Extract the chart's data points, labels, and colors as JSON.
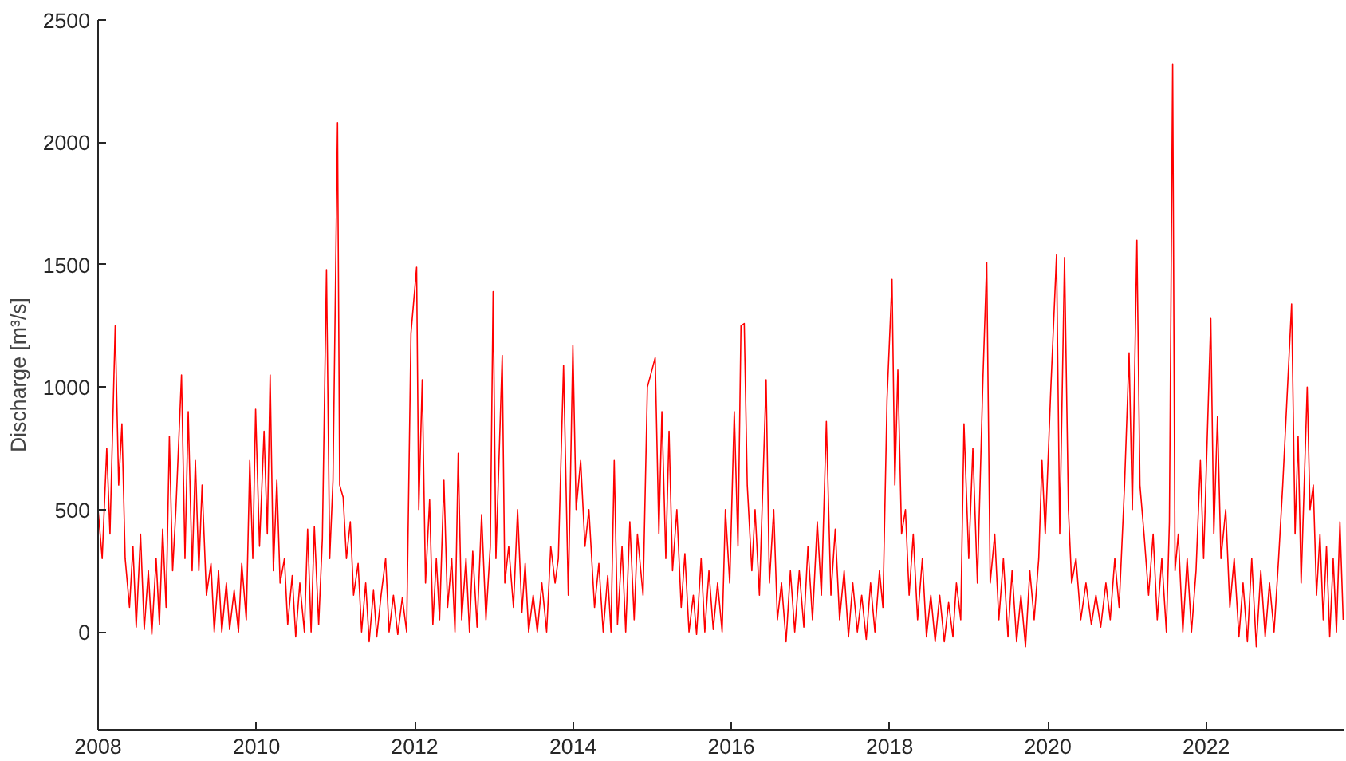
{
  "chart_data": {
    "type": "line",
    "ylabel": "Discharge [m³/s]",
    "xlim": [
      "2008-01-01",
      "2023-09-27"
    ],
    "ylim": [
      -400,
      2500
    ],
    "xticks": [
      "2008",
      "2010",
      "2012",
      "2014",
      "2016",
      "2018",
      "2020",
      "2022"
    ],
    "yticks": [
      0,
      500,
      1000,
      1500,
      2000,
      2500
    ],
    "grid": false,
    "marker": "none",
    "line_style": "solid",
    "series": [
      {
        "color": "#ff0000",
        "x": [
          "2008-01-01",
          "2008-01-20",
          "2008-02-10",
          "2008-02-25",
          "2008-03-20",
          "2008-04-05",
          "2008-04-20",
          "2008-05-05",
          "2008-05-25",
          "2008-06-10",
          "2008-06-25",
          "2008-07-15",
          "2008-08-01",
          "2008-08-20",
          "2008-09-05",
          "2008-09-25",
          "2008-10-10",
          "2008-10-25",
          "2008-11-10",
          "2008-11-25",
          "2008-12-10",
          "2008-12-25",
          "2009-01-20",
          "2009-02-05",
          "2009-02-20",
          "2009-03-10",
          "2009-03-25",
          "2009-04-10",
          "2009-04-25",
          "2009-05-15",
          "2009-06-05",
          "2009-06-20",
          "2009-07-10",
          "2009-07-25",
          "2009-08-15",
          "2009-08-30",
          "2009-09-20",
          "2009-10-10",
          "2009-10-25",
          "2009-11-15",
          "2009-12-01",
          "2009-12-15",
          "2009-12-28",
          "2010-01-15",
          "2010-02-05",
          "2010-02-20",
          "2010-03-05",
          "2010-03-20",
          "2010-04-05",
          "2010-04-20",
          "2010-05-10",
          "2010-05-25",
          "2010-06-15",
          "2010-07-01",
          "2010-07-20",
          "2010-08-10",
          "2010-08-25",
          "2010-09-10",
          "2010-09-25",
          "2010-10-15",
          "2010-11-01",
          "2010-11-20",
          "2010-12-05",
          "2010-12-20",
          "2011-01-10",
          "2011-01-20",
          "2011-02-05",
          "2011-02-20",
          "2011-03-10",
          "2011-03-25",
          "2011-04-15",
          "2011-05-01",
          "2011-05-20",
          "2011-06-05",
          "2011-06-25",
          "2011-07-10",
          "2011-07-30",
          "2011-08-20",
          "2011-09-05",
          "2011-09-25",
          "2011-10-15",
          "2011-11-05",
          "2011-11-25",
          "2011-12-15",
          "2012-01-10",
          "2012-01-20",
          "2012-02-05",
          "2012-02-20",
          "2012-03-10",
          "2012-03-25",
          "2012-04-10",
          "2012-04-25",
          "2012-05-15",
          "2012-06-01",
          "2012-06-20",
          "2012-07-05",
          "2012-07-20",
          "2012-08-05",
          "2012-08-25",
          "2012-09-10",
          "2012-09-25",
          "2012-10-15",
          "2012-11-05",
          "2012-11-25",
          "2012-12-15",
          "2012-12-28",
          "2013-01-10",
          "2013-02-08",
          "2013-02-20",
          "2013-03-10",
          "2013-04-01",
          "2013-04-20",
          "2013-05-10",
          "2013-05-25",
          "2013-06-10",
          "2013-07-01",
          "2013-07-20",
          "2013-08-10",
          "2013-09-01",
          "2013-09-20",
          "2013-10-10",
          "2013-10-25",
          "2013-11-18",
          "2013-12-10",
          "2013-12-31",
          "2014-01-15",
          "2014-02-05",
          "2014-02-25",
          "2014-03-15",
          "2014-04-10",
          "2014-04-30",
          "2014-05-20",
          "2014-06-10",
          "2014-06-25",
          "2014-07-10",
          "2014-07-25",
          "2014-08-15",
          "2014-09-01",
          "2014-09-20",
          "2014-10-10",
          "2014-10-25",
          "2014-11-20",
          "2014-12-10",
          "2015-01-15",
          "2015-02-01",
          "2015-02-15",
          "2015-03-05",
          "2015-03-20",
          "2015-04-05",
          "2015-04-25",
          "2015-05-15",
          "2015-06-01",
          "2015-06-20",
          "2015-07-10",
          "2015-07-25",
          "2015-08-15",
          "2015-09-01",
          "2015-09-20",
          "2015-10-10",
          "2015-10-30",
          "2015-11-20",
          "2015-12-05",
          "2015-12-25",
          "2016-01-15",
          "2016-02-01",
          "2016-02-15",
          "2016-03-01",
          "2016-03-15",
          "2016-04-05",
          "2016-04-20",
          "2016-05-10",
          "2016-06-10",
          "2016-06-25",
          "2016-07-15",
          "2016-08-01",
          "2016-08-20",
          "2016-09-10",
          "2016-09-30",
          "2016-10-20",
          "2016-11-10",
          "2016-12-01",
          "2016-12-20",
          "2017-01-10",
          "2017-02-01",
          "2017-02-20",
          "2017-03-15",
          "2017-04-05",
          "2017-04-25",
          "2017-05-15",
          "2017-06-05",
          "2017-06-25",
          "2017-07-15",
          "2017-08-05",
          "2017-08-25",
          "2017-09-15",
          "2017-10-05",
          "2017-10-25",
          "2017-11-15",
          "2017-12-01",
          "2017-12-20",
          "2018-01-12",
          "2018-01-25",
          "2018-02-08",
          "2018-02-25",
          "2018-03-15",
          "2018-04-01",
          "2018-04-20",
          "2018-05-10",
          "2018-06-01",
          "2018-06-20",
          "2018-07-10",
          "2018-07-30",
          "2018-08-20",
          "2018-09-10",
          "2018-09-30",
          "2018-10-20",
          "2018-11-05",
          "2018-11-25",
          "2018-12-10",
          "2019-01-01",
          "2019-01-20",
          "2019-02-10",
          "2019-03-08",
          "2019-03-25",
          "2019-04-10",
          "2019-05-01",
          "2019-05-20",
          "2019-06-10",
          "2019-07-01",
          "2019-07-20",
          "2019-08-10",
          "2019-08-30",
          "2019-09-20",
          "2019-10-10",
          "2019-10-30",
          "2019-11-20",
          "2019-12-05",
          "2019-12-20",
          "2020-01-15",
          "2020-02-10",
          "2020-02-25",
          "2020-03-18",
          "2020-04-05",
          "2020-04-20",
          "2020-05-10",
          "2020-06-01",
          "2020-06-25",
          "2020-07-20",
          "2020-08-10",
          "2020-09-01",
          "2020-09-25",
          "2020-10-15",
          "2020-11-05",
          "2020-11-25",
          "2020-12-20",
          "2021-01-10",
          "2021-01-25",
          "2021-02-15",
          "2021-03-01",
          "2021-03-20",
          "2021-04-10",
          "2021-05-01",
          "2021-05-20",
          "2021-06-10",
          "2021-07-01",
          "2021-07-15",
          "2021-07-30",
          "2021-08-10",
          "2021-08-25",
          "2021-09-15",
          "2021-10-05",
          "2021-10-25",
          "2021-11-15",
          "2021-12-05",
          "2021-12-20",
          "2022-01-22",
          "2022-02-05",
          "2022-02-22",
          "2022-03-10",
          "2022-04-01",
          "2022-04-20",
          "2022-05-10",
          "2022-06-01",
          "2022-06-20",
          "2022-07-10",
          "2022-07-30",
          "2022-08-20",
          "2022-09-10",
          "2022-09-30",
          "2022-10-20",
          "2022-11-10",
          "2022-12-01",
          "2022-12-20",
          "2023-01-30",
          "2023-02-15",
          "2023-03-01",
          "2023-03-15",
          "2023-04-12",
          "2023-04-25",
          "2023-05-10",
          "2023-05-25",
          "2023-06-10",
          "2023-06-25",
          "2023-07-10",
          "2023-07-25",
          "2023-08-10",
          "2023-08-25",
          "2023-09-10",
          "2023-09-25"
        ],
        "values": [
          500,
          300,
          750,
          400,
          1250,
          600,
          850,
          300,
          100,
          350,
          20,
          400,
          10,
          250,
          -10,
          300,
          30,
          420,
          100,
          800,
          250,
          500,
          1050,
          300,
          900,
          250,
          700,
          250,
          600,
          150,
          280,
          0,
          250,
          0,
          200,
          10,
          170,
          0,
          280,
          50,
          700,
          300,
          910,
          350,
          820,
          400,
          1050,
          250,
          620,
          200,
          300,
          30,
          230,
          -20,
          200,
          0,
          420,
          0,
          430,
          30,
          380,
          1480,
          300,
          620,
          2080,
          600,
          550,
          300,
          450,
          150,
          280,
          0,
          200,
          -40,
          170,
          -20,
          150,
          300,
          0,
          150,
          -10,
          140,
          0,
          1220,
          1490,
          500,
          1030,
          200,
          540,
          30,
          300,
          50,
          620,
          100,
          300,
          0,
          730,
          50,
          300,
          0,
          330,
          20,
          480,
          50,
          350,
          1390,
          300,
          1130,
          200,
          350,
          100,
          500,
          80,
          280,
          0,
          150,
          0,
          200,
          0,
          350,
          200,
          300,
          1090,
          150,
          1170,
          500,
          700,
          350,
          500,
          100,
          280,
          0,
          230,
          0,
          700,
          30,
          350,
          0,
          450,
          50,
          400,
          150,
          1000,
          1120,
          400,
          900,
          300,
          820,
          250,
          500,
          100,
          320,
          0,
          150,
          -10,
          300,
          0,
          250,
          10,
          200,
          0,
          500,
          200,
          900,
          350,
          1250,
          1260,
          600,
          250,
          500,
          150,
          1030,
          200,
          500,
          50,
          200,
          -40,
          250,
          0,
          250,
          20,
          350,
          50,
          450,
          150,
          860,
          150,
          420,
          50,
          250,
          -20,
          200,
          0,
          150,
          -30,
          200,
          0,
          250,
          100,
          950,
          1440,
          600,
          1070,
          400,
          500,
          150,
          400,
          50,
          300,
          -20,
          150,
          -40,
          150,
          -40,
          120,
          -20,
          200,
          50,
          850,
          300,
          750,
          200,
          1050,
          1510,
          200,
          400,
          50,
          300,
          -20,
          250,
          -40,
          150,
          -60,
          250,
          50,
          300,
          700,
          400,
          1000,
          1540,
          400,
          1530,
          500,
          200,
          300,
          50,
          200,
          30,
          150,
          20,
          200,
          50,
          300,
          100,
          600,
          1140,
          500,
          1600,
          600,
          400,
          150,
          400,
          50,
          300,
          0,
          450,
          2320,
          250,
          400,
          0,
          300,
          0,
          250,
          700,
          300,
          1280,
          400,
          880,
          300,
          500,
          100,
          300,
          -20,
          200,
          -40,
          300,
          -60,
          250,
          -20,
          200,
          0,
          300,
          600,
          1340,
          400,
          800,
          200,
          1000,
          500,
          600,
          150,
          400,
          50,
          350,
          -20,
          300,
          0,
          450,
          50
        ]
      }
    ]
  }
}
